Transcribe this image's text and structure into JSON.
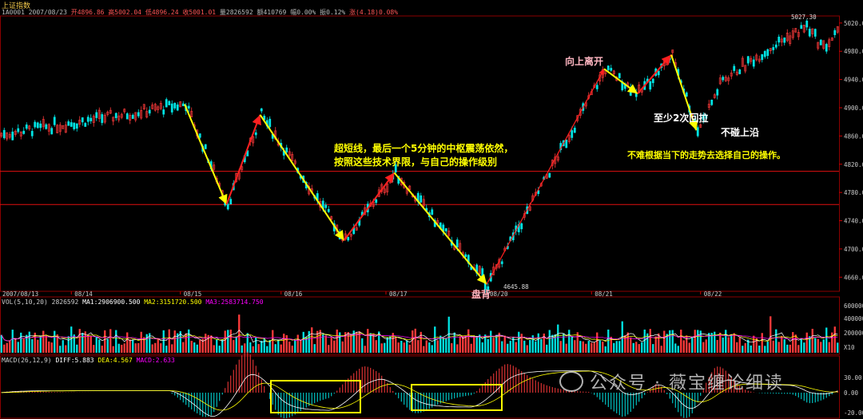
{
  "index_name": "上证指数",
  "info": {
    "code": "1A0001",
    "date": "2007/08/23",
    "open": "开4896.86",
    "high": "高5002.04",
    "low": "低4896.24",
    "close": "收5001.01",
    "volume": "量2826592",
    "amount": "额410769",
    "change_pct": "幅0.00%",
    "amplitude": "振0.12%",
    "up": "涨(4.18)0.08%"
  },
  "colors": {
    "up": "#ff3b3b",
    "down": "#00e5e5",
    "arrow_red": "#ff2020",
    "arrow_yellow": "#ffff00",
    "box_line": "#e01010",
    "ma1": "#ffffff",
    "ma2": "#ffff00",
    "ma3": "#ff00ff"
  },
  "chart_data": {
    "type": "candlestick",
    "y_ticks": [
      "5020.00",
      "4980.00",
      "4940.00",
      "4900.00",
      "4860.00",
      "4820.00",
      "4780.00",
      "4740.00",
      "4700.00",
      "4660.00"
    ],
    "x_ticks": [
      "2007/08/13",
      "08/14",
      "08/15",
      "08/16",
      "08/17",
      "08/20",
      "08/21",
      "08/22"
    ],
    "high_label": "5027.30",
    "low_label": "4645.88",
    "center_box": {
      "upper": 4810,
      "lower": 4763
    },
    "path": [
      {
        "x": 0.22,
        "y": 4905
      },
      {
        "x": 0.27,
        "y": 4763
      },
      {
        "x": 0.31,
        "y": 4890
      },
      {
        "x": 0.41,
        "y": 4712
      },
      {
        "x": 0.47,
        "y": 4808
      },
      {
        "x": 0.58,
        "y": 4650
      },
      {
        "x": 0.72,
        "y": 4955
      },
      {
        "x": 0.76,
        "y": 4920
      },
      {
        "x": 0.8,
        "y": 4975
      },
      {
        "x": 0.83,
        "y": 4868
      }
    ]
  },
  "volume_panel": {
    "header": "VOL(5,10,20)",
    "value": "2826592",
    "ma1": "MA1:2906900.500",
    "ma2": "MA2:3151720.500",
    "ma3": "MA3:2583714.750",
    "y_ticks": [
      "600000",
      "400000",
      "200000",
      "X10"
    ]
  },
  "macd_panel": {
    "header": "MACD(26,12,9)",
    "diff": "DIFF:5.883",
    "dea": "DEA:4.567",
    "macd": "MACD:2.633",
    "y_ticks": [
      "30.00",
      "0.00",
      "-20.00"
    ]
  },
  "annotations": {
    "main_text_1": "超短线，最后一个5分钟的中枢震荡依然，",
    "main_text_2": "按照这些技术界限，与自己的操作级别",
    "up_leave": "向上离开",
    "pull_back": "至少2次回拉",
    "not_touch": "不碰上沿",
    "advice": "不难根据当下的走势去选择自己的操作。",
    "divergence": "盘背"
  },
  "watermark": "公众号 · 薇宝缠论细读"
}
